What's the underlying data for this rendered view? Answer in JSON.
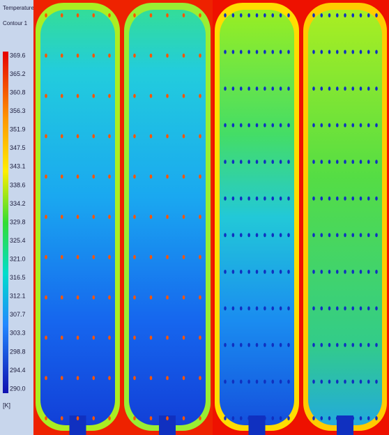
{
  "legend": {
    "title": "Temperature",
    "subtitle": "Contour 1",
    "labels": [
      "369.6",
      "365.2",
      "360.8",
      "356.3",
      "351.9",
      "347.5",
      "343.1",
      "338.6",
      "334.2",
      "329.8",
      "325.4",
      "321.0",
      "316.5",
      "312.1",
      "307.7",
      "303.3",
      "298.8",
      "294.4",
      "290.0"
    ],
    "unit": "[K]"
  }
}
